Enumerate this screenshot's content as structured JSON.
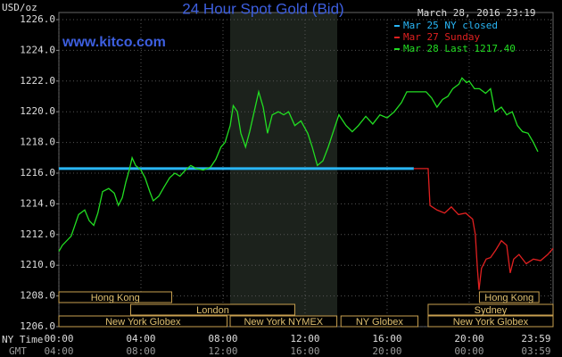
{
  "chart_data": {
    "type": "line",
    "title": "24 Hour Spot Gold (Bid)",
    "unit_label": "USD/oz",
    "website": "www.kitco.com",
    "timestamp": "March 28, 2016 23:19",
    "x_row_labels": [
      "NY Time",
      "GMT"
    ],
    "xlim": [
      0,
      24.09
    ],
    "ylim": [
      1206,
      1226
    ],
    "grid": true,
    "yticks": [
      {
        "value": 1206,
        "label": "1206.0"
      },
      {
        "value": 1208,
        "label": "1208.0"
      },
      {
        "value": 1210,
        "label": "1210.0"
      },
      {
        "value": 1212,
        "label": "1212.0"
      },
      {
        "value": 1214,
        "label": "1214.0"
      },
      {
        "value": 1216,
        "label": "1216.0"
      },
      {
        "value": 1218,
        "label": "1218.0"
      },
      {
        "value": 1220,
        "label": "1220.0"
      },
      {
        "value": 1222,
        "label": "1222.0"
      },
      {
        "value": 1224,
        "label": "1224.0"
      },
      {
        "value": 1226,
        "label": "1226.0"
      }
    ],
    "xticks": [
      {
        "value": 0,
        "label": "00:00"
      },
      {
        "value": 4,
        "label": "04:00"
      },
      {
        "value": 8,
        "label": "08:00"
      },
      {
        "value": 12,
        "label": "12:00"
      },
      {
        "value": 16,
        "label": "16:00"
      },
      {
        "value": 20,
        "label": "20:00"
      },
      {
        "value": 23.98,
        "label": "23:59"
      }
    ],
    "gmt_ticks": [
      {
        "value": 0,
        "label": "04:00"
      },
      {
        "value": 4,
        "label": "08:00"
      },
      {
        "value": 8,
        "label": "12:00"
      },
      {
        "value": 12,
        "label": "16:00"
      },
      {
        "value": 16,
        "label": "20:00"
      },
      {
        "value": 20,
        "label": "00:00"
      },
      {
        "value": 23.98,
        "label": "03:59"
      }
    ],
    "sessions": [
      [
        {
          "name": "Hong Kong",
          "start": 0,
          "end": 5.5
        },
        {
          "name": "Hong Kong",
          "start": 20.5,
          "end": 23.4
        }
      ],
      [
        {
          "name": "London",
          "start": 3.5,
          "end": 11.5
        },
        {
          "name": "Sydney",
          "start": 18.0,
          "end": 24.09
        }
      ],
      [
        {
          "name": "New York Globex",
          "start": 0,
          "end": 8.2
        },
        {
          "name": "New York NYMEX",
          "start": 8.35,
          "end": 13.55
        },
        {
          "name": "NY Globex",
          "start": 13.75,
          "end": 17.5
        },
        {
          "name": "New York Globex",
          "start": 18.0,
          "end": 24.09
        }
      ]
    ],
    "series": [
      {
        "name": "Mar 25 NY closed",
        "color": "#29b6f6",
        "x": [
          0,
          17.3
        ],
        "values": [
          1216.3,
          1216.3
        ]
      },
      {
        "name": "Mar 27 Sunday",
        "color": "#e02020",
        "x": [
          17.3,
          18.0,
          18.09,
          18.43,
          18.8,
          19.13,
          19.48,
          19.83,
          20.17,
          20.3,
          20.4,
          20.48,
          20.6,
          20.83,
          21.04,
          21.3,
          21.57,
          21.83,
          22.0,
          22.17,
          22.43,
          22.78,
          23.13,
          23.48,
          23.83,
          24.09
        ],
        "values": [
          1216.3,
          1216.3,
          1213.9,
          1213.6,
          1213.4,
          1213.8,
          1213.3,
          1213.4,
          1213.0,
          1212.0,
          1209.8,
          1208.4,
          1209.8,
          1210.4,
          1210.5,
          1211.0,
          1211.6,
          1211.3,
          1209.5,
          1210.4,
          1210.7,
          1210.1,
          1210.4,
          1210.3,
          1210.7,
          1211.1
        ]
      },
      {
        "name": "Mar 28 Last 1217.40",
        "color": "#22dd22",
        "x": [
          0,
          0.17,
          0.6,
          0.96,
          1.26,
          1.48,
          1.7,
          1.9,
          2.13,
          2.43,
          2.7,
          2.9,
          3.09,
          3.26,
          3.43,
          3.57,
          3.74,
          4.0,
          4.2,
          4.43,
          4.6,
          4.87,
          5.13,
          5.4,
          5.65,
          5.9,
          6.17,
          6.43,
          6.7,
          7.04,
          7.4,
          7.65,
          7.9,
          8.1,
          8.35,
          8.5,
          8.7,
          8.87,
          9.1,
          9.3,
          9.52,
          9.74,
          9.96,
          10.17,
          10.4,
          10.7,
          10.96,
          11.2,
          11.5,
          11.8,
          12.13,
          12.35,
          12.6,
          12.87,
          13.13,
          13.4,
          13.65,
          14.0,
          14.3,
          14.6,
          14.96,
          15.3,
          15.65,
          16.0,
          16.35,
          16.7,
          16.96,
          17.2,
          17.57,
          17.9,
          18.17,
          18.43,
          18.7,
          18.96,
          19.2,
          19.5,
          19.65,
          19.87,
          20.0,
          20.26,
          20.5,
          20.8,
          21.04,
          21.26,
          21.57,
          21.83,
          22.1,
          22.35,
          22.6,
          22.87,
          23.13,
          23.35
        ],
        "values": [
          1210.9,
          1211.3,
          1211.9,
          1213.3,
          1213.6,
          1212.9,
          1212.6,
          1213.4,
          1214.8,
          1215.0,
          1214.7,
          1213.9,
          1214.4,
          1215.4,
          1216.2,
          1217.0,
          1216.5,
          1216.2,
          1215.7,
          1214.8,
          1214.2,
          1214.5,
          1215.1,
          1215.7,
          1216.0,
          1215.8,
          1216.2,
          1216.5,
          1216.3,
          1216.2,
          1216.4,
          1216.9,
          1217.7,
          1218.0,
          1219.1,
          1220.4,
          1220.0,
          1218.6,
          1217.7,
          1218.7,
          1220.0,
          1221.3,
          1220.3,
          1218.6,
          1219.8,
          1220.0,
          1219.8,
          1220.0,
          1219.1,
          1219.4,
          1218.6,
          1217.7,
          1216.5,
          1216.8,
          1217.7,
          1218.8,
          1219.8,
          1219.1,
          1218.7,
          1219.1,
          1219.7,
          1219.2,
          1219.8,
          1219.6,
          1220.0,
          1220.6,
          1221.3,
          1221.3,
          1221.3,
          1221.3,
          1220.9,
          1220.3,
          1220.8,
          1221.0,
          1221.5,
          1221.8,
          1222.2,
          1221.9,
          1222.0,
          1221.5,
          1221.5,
          1221.2,
          1221.5,
          1220.0,
          1220.3,
          1219.8,
          1220.0,
          1219.1,
          1218.7,
          1218.6,
          1218.0,
          1217.4
        ]
      }
    ]
  }
}
